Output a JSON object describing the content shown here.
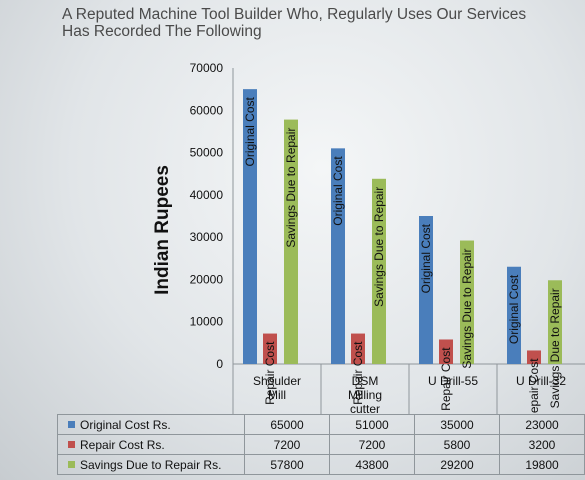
{
  "title_lines": [
    "A Reputed Machine Tool Builder Who, Regularly Uses Our Services",
    "Has Recorded The Following"
  ],
  "chart_data": {
    "type": "bar",
    "categories": [
      [
        "Shoulder",
        "Mill"
      ],
      [
        "DSM",
        "Milling",
        "cutter"
      ],
      [
        "U Drill-55"
      ],
      [
        "U Drill-32"
      ]
    ],
    "ylabel": "Indian Rupees",
    "ylim": [
      0,
      70000
    ],
    "yticks": [
      0,
      10000,
      20000,
      30000,
      40000,
      50000,
      60000,
      70000
    ],
    "grid": false,
    "legend": "table-below",
    "series": [
      {
        "name": "Original Cost",
        "table_label": "Original Cost Rs.",
        "color": "#4a7ebb",
        "values": [
          65000,
          51000,
          35000,
          23000
        ]
      },
      {
        "name": "Repair Cost",
        "table_label": "Repair Cost Rs.",
        "color": "#c0504d",
        "values": [
          7200,
          7200,
          5800,
          3200
        ]
      },
      {
        "name": "Savings Due to Repair",
        "table_label": "Savings Due to Repair Rs.",
        "color": "#9bbb59",
        "values": [
          57800,
          43800,
          29200,
          19800
        ]
      }
    ]
  }
}
